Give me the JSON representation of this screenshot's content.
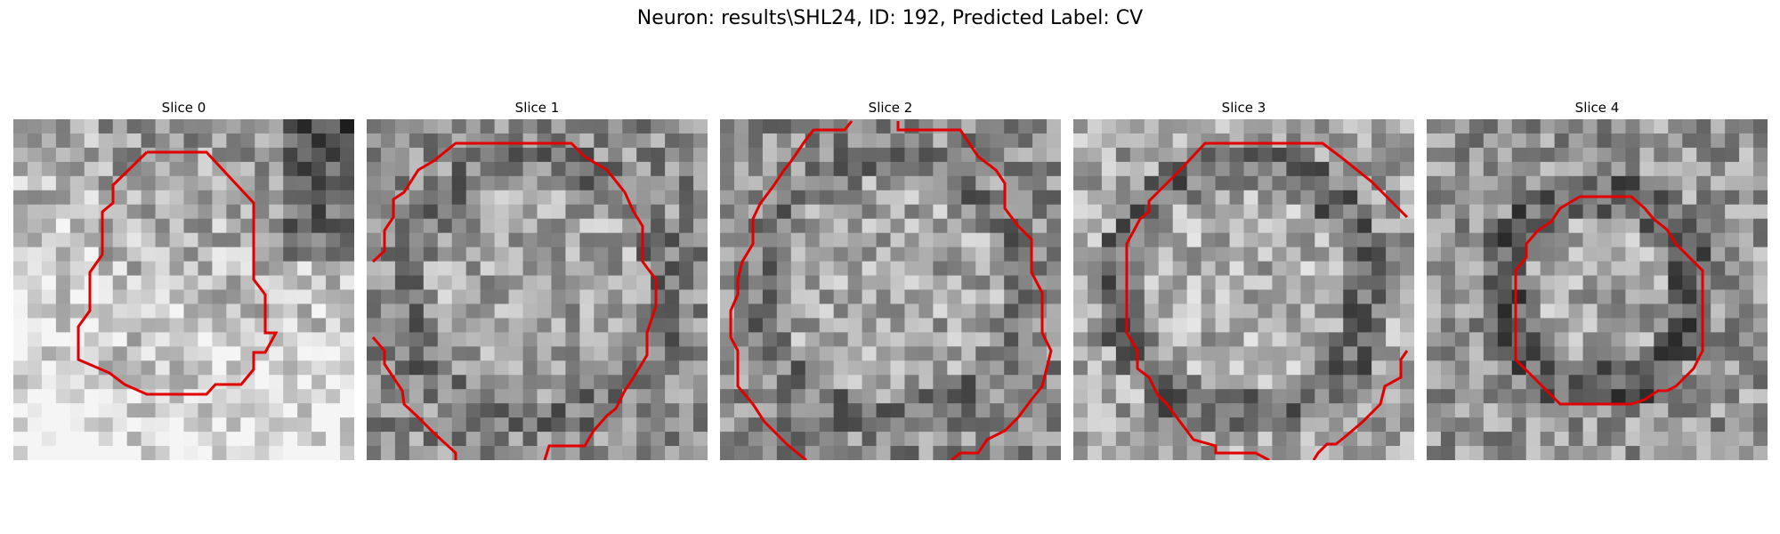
{
  "figure": {
    "title": "Neuron: results\\SHL24, ID: 192, Predicted Label: CV"
  },
  "panels": [
    {
      "label": "Slice 0"
    },
    {
      "label": "Slice 1"
    },
    {
      "label": "Slice 2"
    },
    {
      "label": "Slice 3"
    },
    {
      "label": "Slice 4"
    }
  ],
  "colors": {
    "contour": "#e00000",
    "background": "#ffffff"
  }
}
